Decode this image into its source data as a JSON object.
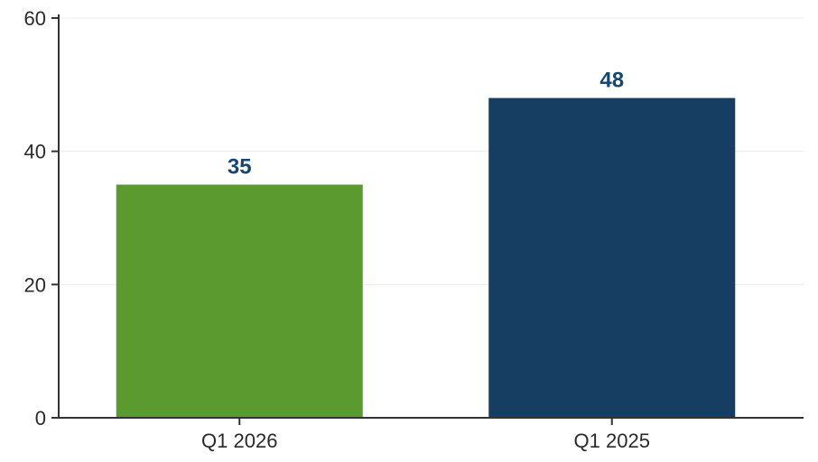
{
  "chart_data": {
    "type": "bar",
    "categories": [
      "Q1 2026",
      "Q1 2025"
    ],
    "values": [
      35,
      48
    ],
    "data_labels": [
      "35",
      "48"
    ],
    "title": "",
    "xlabel": "",
    "ylabel": "",
    "ylim": [
      0,
      60
    ],
    "yticks": [
      0,
      20,
      40,
      60
    ],
    "ytick_labels": [
      "0",
      "20",
      "40",
      "60"
    ],
    "grid": true,
    "legend": "none",
    "bar_colors": [
      "#5a9a2e",
      "#163e63"
    ],
    "label_color": "#17476e"
  }
}
